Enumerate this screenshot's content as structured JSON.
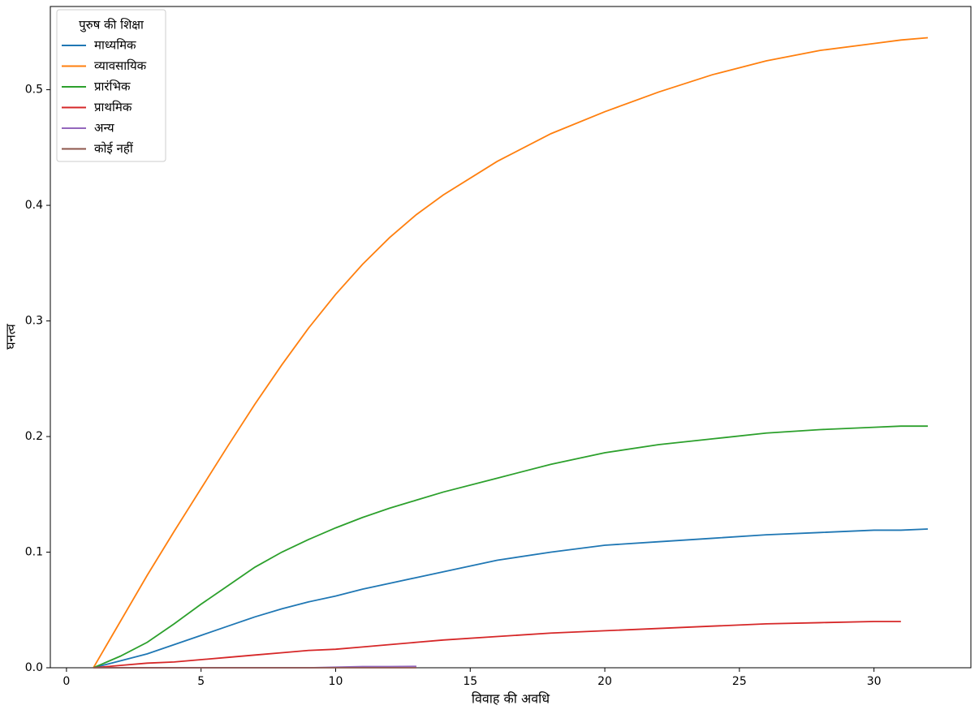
{
  "chart_data": {
    "type": "line",
    "xlabel": "विवाह की अवधि",
    "ylabel": "घनत्व",
    "legend_title": "पुरुष की शिक्षा",
    "legend_loc": "upper left",
    "x": [
      1,
      2,
      3,
      4,
      5,
      6,
      7,
      8,
      9,
      10,
      11,
      12,
      13,
      14,
      16,
      18,
      20,
      22,
      24,
      26,
      28,
      30,
      31,
      32
    ],
    "series": [
      {
        "name": "माध्यमिक",
        "color": "#1f77b4",
        "values": [
          0,
          0.006,
          0.012,
          0.02,
          0.028,
          0.036,
          0.044,
          0.051,
          0.057,
          0.062,
          0.068,
          0.073,
          0.078,
          0.083,
          0.093,
          0.1,
          0.106,
          0.109,
          0.112,
          0.115,
          0.117,
          0.119,
          0.119,
          0.12
        ]
      },
      {
        "name": "व्यावसायिक",
        "color": "#ff7f0e",
        "values": [
          0,
          0.04,
          0.08,
          0.118,
          0.155,
          0.192,
          0.228,
          0.262,
          0.294,
          0.323,
          0.349,
          0.372,
          0.392,
          0.409,
          0.438,
          0.462,
          0.481,
          0.498,
          0.513,
          0.525,
          0.534,
          0.54,
          0.543,
          0.545
        ]
      },
      {
        "name": "प्रारंभिक",
        "color": "#2ca02c",
        "values": [
          0,
          0.01,
          0.022,
          0.038,
          0.055,
          0.071,
          0.087,
          0.1,
          0.111,
          0.121,
          0.13,
          0.138,
          0.145,
          0.152,
          0.164,
          0.176,
          0.186,
          0.193,
          0.198,
          0.203,
          0.206,
          0.208,
          0.209,
          0.209
        ]
      },
      {
        "name": "प्राथमिक",
        "color": "#d62728",
        "values": [
          0,
          0.002,
          0.004,
          0.005,
          0.007,
          0.009,
          0.011,
          0.013,
          0.015,
          0.016,
          0.018,
          0.02,
          0.022,
          0.024,
          0.027,
          0.03,
          0.032,
          0.034,
          0.036,
          0.038,
          0.039,
          0.04,
          0.04,
          null
        ]
      },
      {
        "name": "अन्य",
        "color": "#9467bd",
        "values": [
          0,
          0,
          0,
          0,
          0,
          0,
          0,
          0,
          0,
          0.0005,
          0.001,
          0.001,
          0.0012,
          null,
          null,
          null,
          null,
          null,
          null,
          null,
          null,
          null,
          null,
          null
        ]
      },
      {
        "name": "कोई नहीं",
        "color": "#8c564b",
        "values": [
          0,
          0,
          0,
          0,
          0,
          0,
          0,
          0,
          0,
          0,
          0,
          0,
          0,
          null,
          null,
          null,
          null,
          null,
          null,
          null,
          null,
          null,
          null,
          null
        ]
      }
    ],
    "xlim": [
      -0.6,
      33.6
    ],
    "ylim": [
      0,
      0.572
    ],
    "xticks": [
      0,
      5,
      10,
      15,
      20,
      25,
      30
    ],
    "yticks": [
      {
        "value": 0,
        "label": "0.0"
      },
      0.1,
      0.2,
      0.3,
      0.4,
      0.5
    ]
  }
}
